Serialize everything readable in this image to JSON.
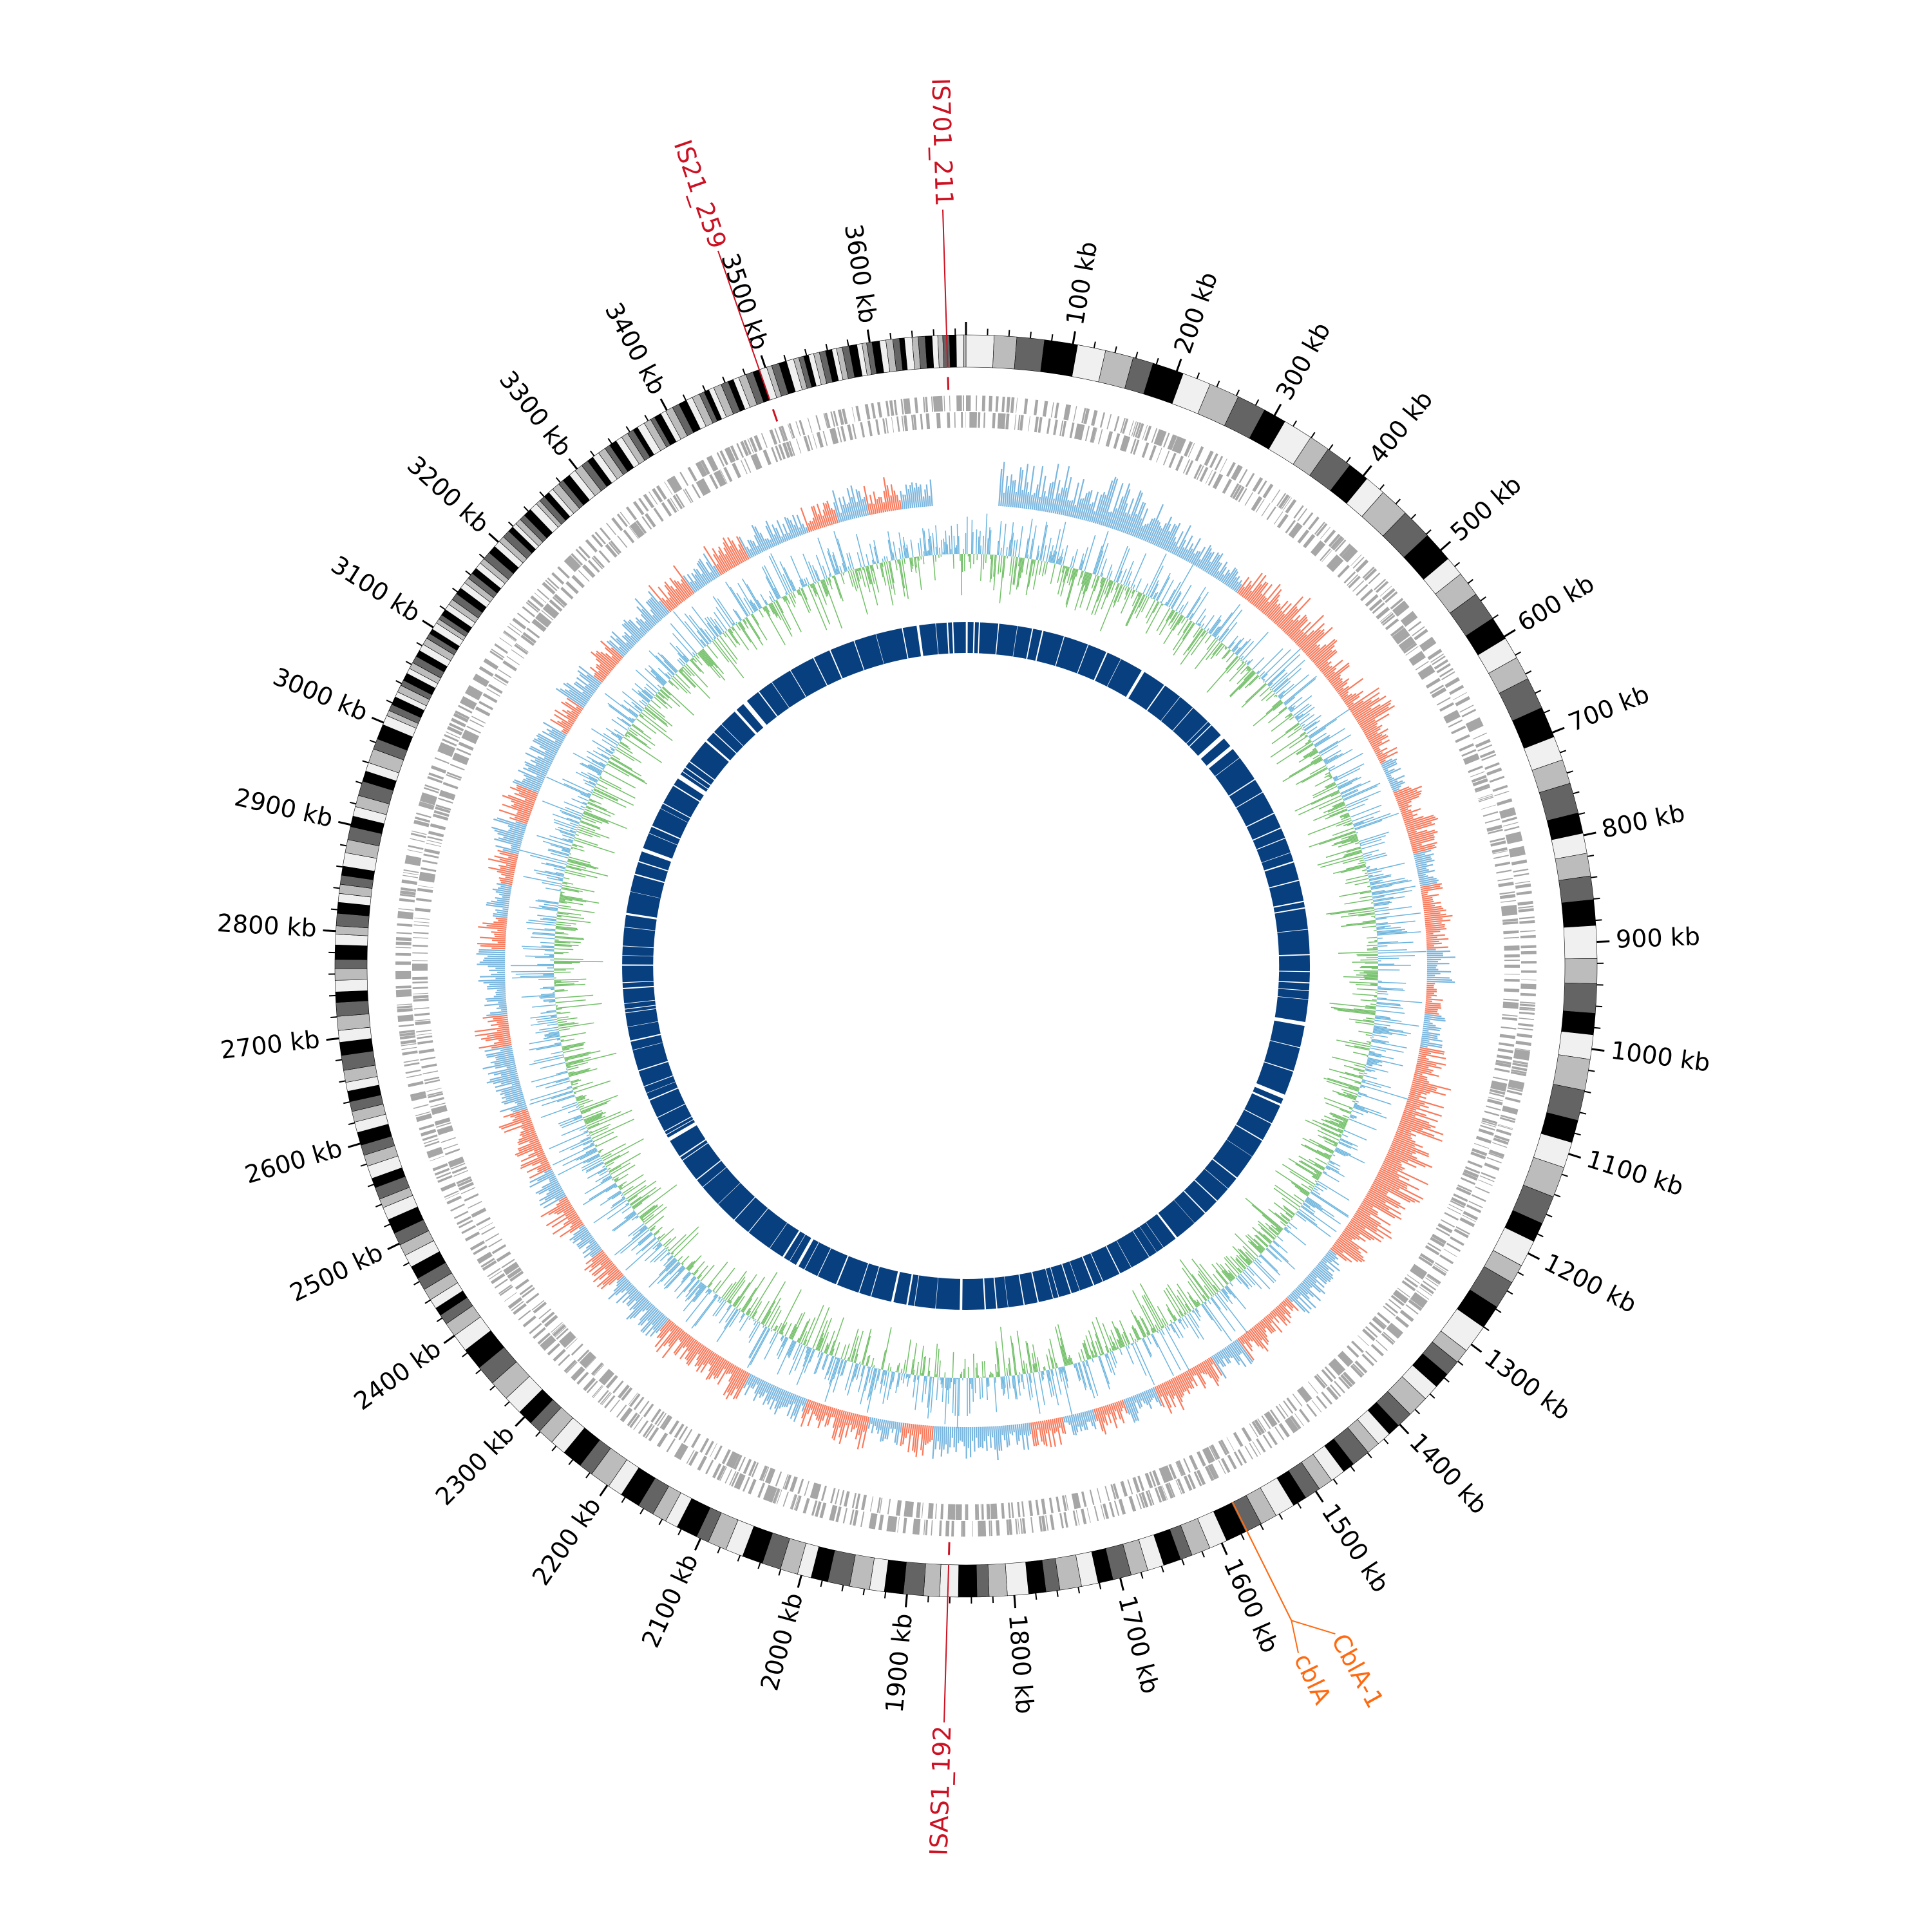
{
  "chart_data": {
    "type": "circular-genome",
    "title": "",
    "genome_length_kb": 3690,
    "tick_unit": "kb",
    "major_tick_kb": 100,
    "minor_tick_kb": 20,
    "tick_labels": [
      "100 kb",
      "200 kb",
      "300 kb",
      "400 kb",
      "500 kb",
      "600 kb",
      "700 kb",
      "800 kb",
      "900 kb",
      "1000 kb",
      "1100 kb",
      "1200 kb",
      "1300 kb",
      "1400 kb",
      "1500 kb",
      "1600 kb",
      "1700 kb",
      "1800 kb",
      "1900 kb",
      "2000 kb",
      "2100 kb",
      "2200 kb",
      "2300 kb",
      "2400 kb",
      "2500 kb",
      "2600 kb",
      "2700 kb",
      "2800 kb",
      "2900 kb",
      "3000 kb",
      "3100 kb",
      "3200 kb",
      "3300 kb",
      "3400 kb",
      "3500 kb",
      "3600 kb"
    ],
    "annotations": [
      {
        "label": "IS701_211",
        "position_kb": 3672,
        "color": "#cc1122"
      },
      {
        "label": "IS21_259",
        "position_kb": 3494,
        "color": "#cc1122"
      },
      {
        "label": "ISAS1_192",
        "position_kb": 1862,
        "color": "#cc1122"
      },
      {
        "label": "CblA-1",
        "position_kb": 1574,
        "color": "#ff6a10"
      },
      {
        "label": "cblA",
        "position_kb": 1574,
        "color": "#ff6a10"
      }
    ],
    "skew_track": {
      "positive_color": "#7ab6de",
      "negative_color": "#f87a5c",
      "bins_kb": 41,
      "values": [
        0,
        0.8,
        0.9,
        0.7,
        0.9,
        0.8,
        0.6,
        0.5,
        0.4,
        -0.6,
        -0.8,
        -0.7,
        -0.6,
        -0.5,
        -0.7,
        -0.4,
        0.3,
        -0.5,
        -0.6,
        0.4,
        -0.4,
        -0.5,
        0.5,
        -0.3,
        0.4,
        -0.5,
        -0.7,
        -0.8,
        -0.9,
        -0.9,
        -0.8,
        -0.6,
        0.4,
        0.5,
        -0.4,
        -0.5,
        0.5,
        -0.5,
        -0.6,
        0.5,
        -0.5,
        0.4,
        -0.5,
        0.5,
        0.6,
        0.6,
        -0.6,
        0.4,
        -0.6,
        -0.5,
        0.5,
        0.4,
        -0.6,
        -0.5,
        -0.6,
        0.5,
        0.5,
        -0.5,
        0.4,
        -0.6,
        0.5,
        -0.5,
        -0.6,
        0.5,
        0.6,
        -0.6,
        0.4,
        0.5,
        -0.5,
        0.4,
        -0.5,
        0.6,
        -0.6,
        0.5,
        0.5,
        -0.4,
        0.6,
        -0.5,
        0.5,
        0.6,
        -0.6,
        0.5,
        -0.6,
        0.5,
        0.4,
        -0.5,
        0.6,
        -0.6,
        0.5,
        0
      ]
    },
    "gc_track": {
      "positive_color": "#6cb5de",
      "negative_color": "#72c068"
    },
    "gene_track_color": "#a6a6a6",
    "inner_ring_color": "#083f7f",
    "ideogram_colors": [
      "#f0f0f0",
      "#bcbcbc",
      "#646464",
      "#000000"
    ]
  }
}
